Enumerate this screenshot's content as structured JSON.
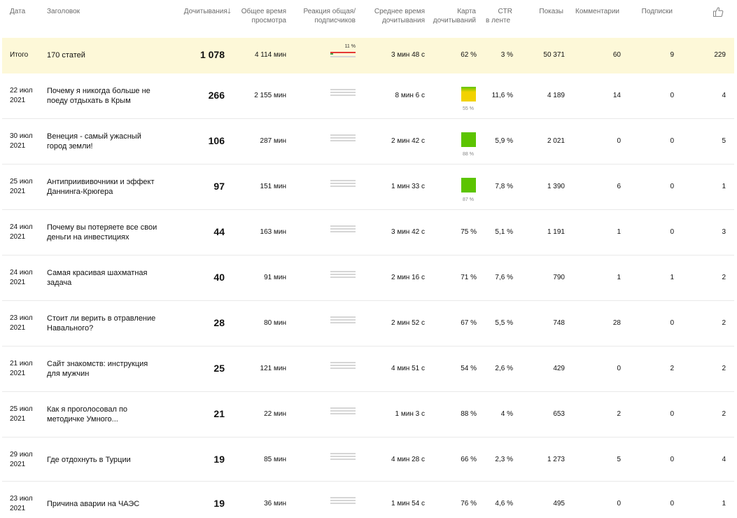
{
  "header": {
    "date": "Дата",
    "title": "Заголовок",
    "reads": "Дочитывания",
    "total_time_1": "Общее время",
    "total_time_2": "просмотра",
    "reaction_1": "Реакция общая/",
    "reaction_2": "подписчиков",
    "avg_time_1": "Среднее время",
    "avg_time_2": "дочитывания",
    "map_1": "Карта",
    "map_2": "дочитываний",
    "ctr_1": "CTR",
    "ctr_2": "в ленте",
    "impressions": "Показы",
    "comments": "Комментарии",
    "subscriptions": "Подписки",
    "likes_icon": "thumbs-up-icon"
  },
  "total": {
    "label": "Итого",
    "title": "170 статей",
    "reads": "1 078",
    "total_time": "4 114 мин",
    "reaction_pct": "11 %",
    "avg_time": "3 мин 48 с",
    "map": "62 %",
    "ctr": "3 %",
    "impressions": "50 371",
    "comments": "60",
    "subscriptions": "9",
    "likes": "229"
  },
  "rows": [
    {
      "date_1": "22 июл",
      "date_2": "2021",
      "title_1": "Почему я никогда больше не",
      "title_2": "поеду отдыхать в Крым",
      "reads": "266",
      "total_time": "2 155 мин",
      "avg_time": "8 мин 6 с",
      "map": "55 %",
      "map_fill": 0.55,
      "ctr": "11,6 %",
      "impressions": "4 189",
      "comments": "14",
      "subscriptions": "0",
      "likes": "4"
    },
    {
      "date_1": "30 июл",
      "date_2": "2021",
      "title_1": "Венеция - самый ужасный",
      "title_2": "город земли!",
      "reads": "106",
      "total_time": "287 мин",
      "avg_time": "2 мин 42 с",
      "map": "88 %",
      "map_fill": 0.88,
      "ctr": "5,9 %",
      "impressions": "2 021",
      "comments": "0",
      "subscriptions": "0",
      "likes": "5"
    },
    {
      "date_1": "25 июл",
      "date_2": "2021",
      "title_1": "Антиприививочники и эффект",
      "title_2": "Даннинга-Крюгера",
      "reads": "97",
      "total_time": "151 мин",
      "avg_time": "1 мин 33 с",
      "map": "87 %",
      "map_fill": 0.87,
      "ctr": "7,8 %",
      "impressions": "1 390",
      "comments": "6",
      "subscriptions": "0",
      "likes": "1"
    },
    {
      "date_1": "24 июл",
      "date_2": "2021",
      "title_1": "Почему вы потеряете все свои",
      "title_2": "деньги на инвестициях",
      "reads": "44",
      "total_time": "163 мин",
      "avg_time": "3 мин 42 с",
      "map": "75 %",
      "ctr": "5,1 %",
      "impressions": "1 191",
      "comments": "1",
      "subscriptions": "0",
      "likes": "3"
    },
    {
      "date_1": "24 июл",
      "date_2": "2021",
      "title_1": "Самая красивая шахматная",
      "title_2": "задача",
      "reads": "40",
      "total_time": "91 мин",
      "avg_time": "2 мин 16 с",
      "map": "71 %",
      "ctr": "7,6 %",
      "impressions": "790",
      "comments": "1",
      "subscriptions": "1",
      "likes": "2"
    },
    {
      "date_1": "23 июл",
      "date_2": "2021",
      "title_1": "Стоит ли верить в отравление",
      "title_2": "Навального?",
      "reads": "28",
      "total_time": "80 мин",
      "avg_time": "2 мин 52 с",
      "map": "67 %",
      "ctr": "5,5 %",
      "impressions": "748",
      "comments": "28",
      "subscriptions": "0",
      "likes": "2"
    },
    {
      "date_1": "21 июл",
      "date_2": "2021",
      "title_1": "Сайт знакомств: инструкция",
      "title_2": "для мужчин",
      "reads": "25",
      "total_time": "121 мин",
      "avg_time": "4 мин 51 с",
      "map": "54 %",
      "ctr": "2,6 %",
      "impressions": "429",
      "comments": "0",
      "subscriptions": "2",
      "likes": "2"
    },
    {
      "date_1": "25 июл",
      "date_2": "2021",
      "title_1": "Как я проголосовал по",
      "title_2": "методичке Умного...",
      "reads": "21",
      "total_time": "22 мин",
      "avg_time": "1 мин 3 с",
      "map": "88 %",
      "ctr": "4 %",
      "impressions": "653",
      "comments": "2",
      "subscriptions": "0",
      "likes": "2"
    },
    {
      "date_1": "29 июл",
      "date_2": "2021",
      "title_1": "Где отдохнуть в Турции",
      "title_2": "",
      "reads": "19",
      "total_time": "85 мин",
      "avg_time": "4 мин 28 с",
      "map": "66 %",
      "ctr": "2,3 %",
      "impressions": "1 273",
      "comments": "5",
      "subscriptions": "0",
      "likes": "4"
    },
    {
      "date_1": "23 июл",
      "date_2": "2021",
      "title_1": "Причина аварии на ЧАЭС",
      "title_2": "",
      "reads": "19",
      "total_time": "36 мин",
      "avg_time": "1 мин 54 с",
      "map": "76 %",
      "ctr": "4,6 %",
      "impressions": "495",
      "comments": "0",
      "subscriptions": "0",
      "likes": "1"
    }
  ],
  "colors": {
    "total_bg": "#fdf8d8",
    "reaction_red": "#e53935",
    "reaction_green": "#43a047",
    "map_green": "#5cc400",
    "map_yellow": "#f2d200"
  }
}
